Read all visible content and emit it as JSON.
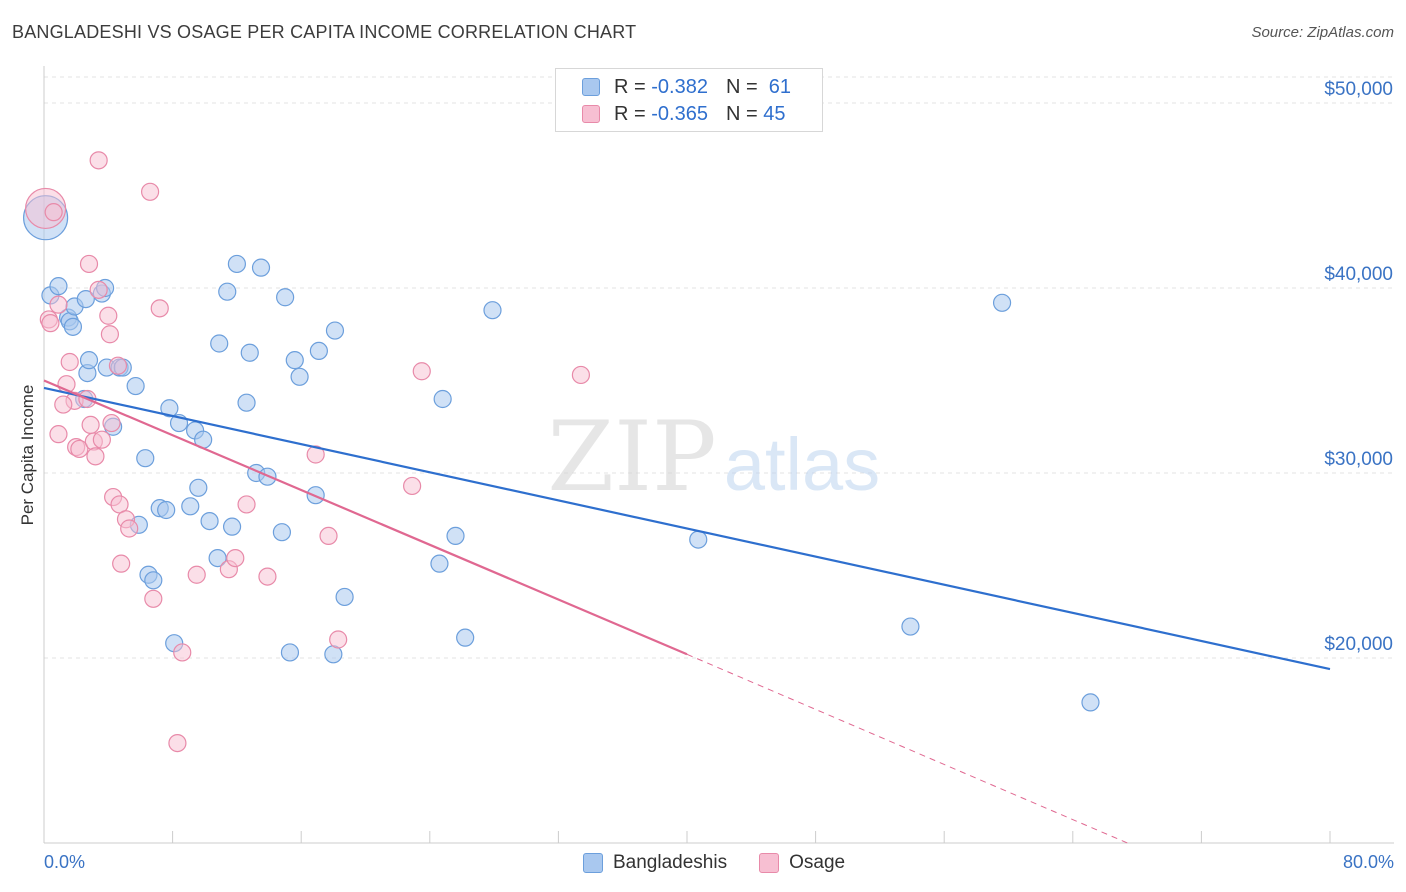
{
  "header": {
    "title": "BANGLADESHI VS OSAGE PER CAPITA INCOME CORRELATION CHART",
    "source": "Source: ZipAtlas.com"
  },
  "legend_stats": {
    "bangladeshis": {
      "r_label": "R =",
      "r_value": "-0.382",
      "n_label": "N =",
      "n_value": "61"
    },
    "osage": {
      "r_label": "R =",
      "r_value": "-0.365",
      "n_label": "N =",
      "n_value": "45"
    }
  },
  "legend_bottom": {
    "series1": "Bangladeshis",
    "series2": "Osage"
  },
  "colors": {
    "blue_fill": "#a9c8ef",
    "blue_stroke": "#6c9fdc",
    "blue_line": "#2e6fce",
    "pink_fill": "#f7bfd2",
    "pink_stroke": "#e88aa9",
    "pink_line": "#e06891",
    "tick_text": "#3a73c4",
    "grid": "#e3e3e3"
  },
  "chart_data": {
    "type": "scatter",
    "title": "BANGLADESHI VS OSAGE PER CAPITA INCOME CORRELATION CHART",
    "xlabel": "",
    "ylabel": "Per Capita Income",
    "xlim": [
      0,
      80
    ],
    "ylim": [
      10000,
      52000
    ],
    "x_tick_labels": [
      "0.0%",
      "80.0%"
    ],
    "y_ticks": [
      20000,
      30000,
      40000,
      50000
    ],
    "y_tick_labels": [
      "$20,000",
      "$30,000",
      "$40,000",
      "$50,000"
    ],
    "grid": true,
    "legend_placement": "top-center",
    "watermark": "ZIPatlas",
    "series": [
      {
        "name": "Bangladeshis",
        "points": [
          [
            0.1,
            43800
          ],
          [
            0.4,
            39600
          ],
          [
            0.9,
            40100
          ],
          [
            1.5,
            38400
          ],
          [
            1.6,
            38200
          ],
          [
            1.8,
            37900
          ],
          [
            1.9,
            39000
          ],
          [
            2.5,
            34000
          ],
          [
            2.6,
            39400
          ],
          [
            2.7,
            35400
          ],
          [
            2.8,
            36100
          ],
          [
            3.6,
            39700
          ],
          [
            3.8,
            40000
          ],
          [
            3.9,
            35700
          ],
          [
            4.3,
            32500
          ],
          [
            4.7,
            35700
          ],
          [
            4.9,
            35700
          ],
          [
            5.7,
            34700
          ],
          [
            5.9,
            27200
          ],
          [
            6.3,
            30800
          ],
          [
            6.5,
            24500
          ],
          [
            6.8,
            24200
          ],
          [
            7.2,
            28100
          ],
          [
            7.6,
            28000
          ],
          [
            7.8,
            33500
          ],
          [
            8.1,
            20800
          ],
          [
            8.4,
            32700
          ],
          [
            9.1,
            28200
          ],
          [
            9.4,
            32300
          ],
          [
            9.6,
            29200
          ],
          [
            9.9,
            31800
          ],
          [
            10.3,
            27400
          ],
          [
            10.8,
            25400
          ],
          [
            10.9,
            37000
          ],
          [
            11.4,
            39800
          ],
          [
            11.7,
            27100
          ],
          [
            12.0,
            41300
          ],
          [
            12.6,
            33800
          ],
          [
            12.8,
            36500
          ],
          [
            13.2,
            30000
          ],
          [
            13.5,
            41100
          ],
          [
            13.9,
            29800
          ],
          [
            14.8,
            26800
          ],
          [
            15.0,
            39500
          ],
          [
            15.3,
            20300
          ],
          [
            15.6,
            36100
          ],
          [
            15.9,
            35200
          ],
          [
            16.9,
            28800
          ],
          [
            17.1,
            36600
          ],
          [
            18.0,
            20200
          ],
          [
            18.1,
            37700
          ],
          [
            18.7,
            23300
          ],
          [
            24.6,
            25100
          ],
          [
            24.8,
            34000
          ],
          [
            25.6,
            26600
          ],
          [
            26.2,
            21100
          ],
          [
            27.9,
            38800
          ],
          [
            40.7,
            26400
          ],
          [
            53.9,
            21700
          ],
          [
            59.6,
            39200
          ],
          [
            65.1,
            17600
          ]
        ]
      },
      {
        "name": "Osage",
        "points": [
          [
            0.1,
            44300
          ],
          [
            0.3,
            38300
          ],
          [
            0.4,
            38100
          ],
          [
            0.6,
            44100
          ],
          [
            0.9,
            32100
          ],
          [
            1.4,
            34800
          ],
          [
            1.6,
            36000
          ],
          [
            1.9,
            33900
          ],
          [
            2.0,
            31400
          ],
          [
            2.2,
            31300
          ],
          [
            2.7,
            34000
          ],
          [
            2.8,
            41300
          ],
          [
            2.9,
            32600
          ],
          [
            3.1,
            31700
          ],
          [
            3.2,
            30900
          ],
          [
            3.4,
            39900
          ],
          [
            3.4,
            46900
          ],
          [
            3.6,
            31800
          ],
          [
            4.0,
            38500
          ],
          [
            4.1,
            37500
          ],
          [
            4.2,
            32700
          ],
          [
            4.3,
            28700
          ],
          [
            4.6,
            35800
          ],
          [
            4.7,
            28300
          ],
          [
            4.8,
            25100
          ],
          [
            5.1,
            27500
          ],
          [
            5.3,
            27000
          ],
          [
            6.6,
            45200
          ],
          [
            6.8,
            23200
          ],
          [
            7.2,
            38900
          ],
          [
            8.3,
            15400
          ],
          [
            8.6,
            20300
          ],
          [
            9.5,
            24500
          ],
          [
            11.5,
            24800
          ],
          [
            11.9,
            25400
          ],
          [
            12.6,
            28300
          ],
          [
            13.9,
            24400
          ],
          [
            16.9,
            31000
          ],
          [
            17.7,
            26600
          ],
          [
            18.3,
            21000
          ],
          [
            22.9,
            29300
          ],
          [
            23.5,
            35500
          ],
          [
            33.4,
            35300
          ],
          [
            0.9,
            39100
          ],
          [
            1.2,
            33700
          ]
        ]
      }
    ],
    "trend_lines": [
      {
        "series": "Bangladeshis",
        "x0": 0,
        "y0": 34600,
        "x1": 80,
        "y1": 19400
      },
      {
        "series": "Osage",
        "x0": 0,
        "y0": 35000,
        "x1": 40,
        "y1": 20200,
        "dashed_extension_to": [
          67.4,
          10000
        ]
      }
    ]
  }
}
